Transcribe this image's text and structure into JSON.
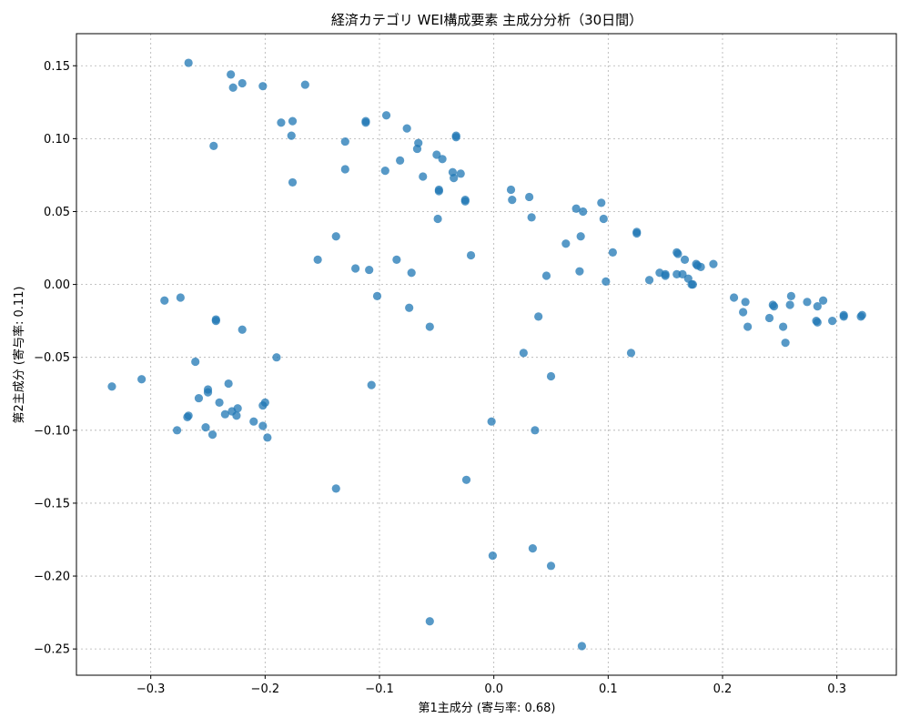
{
  "chart_data": {
    "type": "scatter",
    "title": "経済カテゴリ WEI構成要素 主成分分析（30日間）",
    "xlabel": "第1主成分 (寄与率: 0.68)",
    "ylabel": "第2主成分 (寄与率: 0.11)",
    "xlim": [
      -0.365,
      0.352
    ],
    "ylim": [
      -0.268,
      0.172
    ],
    "xticks": [
      -0.3,
      -0.2,
      -0.1,
      0.0,
      0.1,
      0.2,
      0.3
    ],
    "xtick_labels": [
      "−0.3",
      "−0.2",
      "−0.1",
      "0.0",
      "0.1",
      "0.2",
      "0.3"
    ],
    "yticks": [
      -0.25,
      -0.2,
      -0.15,
      -0.1,
      -0.05,
      0.0,
      0.05,
      0.1,
      0.15
    ],
    "ytick_labels": [
      "−0.25",
      "−0.20",
      "−0.15",
      "−0.10",
      "−0.05",
      "0.00",
      "0.05",
      "0.10",
      "0.15"
    ],
    "grid": true,
    "color": "#1f77b4",
    "points": [
      [
        -0.267,
        0.152
      ],
      [
        -0.23,
        0.144
      ],
      [
        -0.228,
        0.135
      ],
      [
        -0.22,
        0.138
      ],
      [
        -0.202,
        0.136
      ],
      [
        -0.165,
        0.137
      ],
      [
        -0.186,
        0.111
      ],
      [
        -0.176,
        0.112
      ],
      [
        -0.177,
        0.102
      ],
      [
        -0.245,
        0.095
      ],
      [
        -0.176,
        0.07
      ],
      [
        -0.13,
        0.098
      ],
      [
        -0.13,
        0.079
      ],
      [
        -0.112,
        0.111
      ],
      [
        -0.112,
        0.112
      ],
      [
        -0.094,
        0.116
      ],
      [
        -0.076,
        0.107
      ],
      [
        -0.066,
        0.097
      ],
      [
        -0.067,
        0.093
      ],
      [
        -0.082,
        0.085
      ],
      [
        -0.095,
        0.078
      ],
      [
        -0.062,
        0.074
      ],
      [
        -0.05,
        0.089
      ],
      [
        -0.045,
        0.086
      ],
      [
        -0.033,
        0.101
      ],
      [
        -0.033,
        0.102
      ],
      [
        -0.036,
        0.077
      ],
      [
        -0.035,
        0.073
      ],
      [
        -0.029,
        0.076
      ],
      [
        -0.048,
        0.064
      ],
      [
        -0.048,
        0.065
      ],
      [
        -0.025,
        0.057
      ],
      [
        -0.025,
        0.058
      ],
      [
        -0.049,
        0.045
      ],
      [
        -0.138,
        0.033
      ],
      [
        -0.154,
        0.017
      ],
      [
        -0.121,
        0.011
      ],
      [
        -0.109,
        0.01
      ],
      [
        -0.085,
        0.017
      ],
      [
        -0.072,
        0.008
      ],
      [
        -0.02,
        0.02
      ],
      [
        -0.102,
        -0.008
      ],
      [
        -0.074,
        -0.016
      ],
      [
        -0.056,
        -0.029
      ],
      [
        -0.288,
        -0.011
      ],
      [
        -0.274,
        -0.009
      ],
      [
        -0.243,
        -0.024
      ],
      [
        -0.243,
        -0.025
      ],
      [
        -0.22,
        -0.031
      ],
      [
        -0.261,
        -0.053
      ],
      [
        -0.19,
        -0.05
      ],
      [
        -0.107,
        -0.069
      ],
      [
        -0.334,
        -0.07
      ],
      [
        -0.308,
        -0.065
      ],
      [
        -0.25,
        -0.072
      ],
      [
        -0.25,
        -0.074
      ],
      [
        -0.258,
        -0.078
      ],
      [
        -0.232,
        -0.068
      ],
      [
        -0.24,
        -0.081
      ],
      [
        -0.224,
        -0.085
      ],
      [
        -0.2,
        -0.081
      ],
      [
        -0.202,
        -0.083
      ],
      [
        -0.229,
        -0.087
      ],
      [
        -0.235,
        -0.089
      ],
      [
        -0.225,
        -0.09
      ],
      [
        -0.267,
        -0.09
      ],
      [
        -0.268,
        -0.091
      ],
      [
        -0.21,
        -0.094
      ],
      [
        -0.202,
        -0.097
      ],
      [
        -0.252,
        -0.098
      ],
      [
        -0.277,
        -0.1
      ],
      [
        -0.246,
        -0.103
      ],
      [
        -0.198,
        -0.105
      ],
      [
        -0.138,
        -0.14
      ],
      [
        -0.024,
        -0.134
      ],
      [
        -0.002,
        -0.094
      ],
      [
        0.036,
        -0.1
      ],
      [
        0.05,
        -0.063
      ],
      [
        0.026,
        -0.047
      ],
      [
        0.039,
        -0.022
      ],
      [
        -0.001,
        -0.186
      ],
      [
        0.034,
        -0.181
      ],
      [
        0.05,
        -0.193
      ],
      [
        -0.056,
        -0.231
      ],
      [
        0.077,
        -0.248
      ],
      [
        0.015,
        0.065
      ],
      [
        0.016,
        0.058
      ],
      [
        0.031,
        0.06
      ],
      [
        0.033,
        0.046
      ],
      [
        0.072,
        0.052
      ],
      [
        0.078,
        0.05
      ],
      [
        0.094,
        0.056
      ],
      [
        0.096,
        0.045
      ],
      [
        0.063,
        0.028
      ],
      [
        0.076,
        0.033
      ],
      [
        0.104,
        0.022
      ],
      [
        0.046,
        0.006
      ],
      [
        0.075,
        0.009
      ],
      [
        0.098,
        0.002
      ],
      [
        0.125,
        0.035
      ],
      [
        0.125,
        0.036
      ],
      [
        0.136,
        0.003
      ],
      [
        0.145,
        0.008
      ],
      [
        0.15,
        0.007
      ],
      [
        0.15,
        0.006
      ],
      [
        0.16,
        0.022
      ],
      [
        0.161,
        0.021
      ],
      [
        0.167,
        0.017
      ],
      [
        0.178,
        0.013
      ],
      [
        0.177,
        0.014
      ],
      [
        0.181,
        0.012
      ],
      [
        0.192,
        0.014
      ],
      [
        0.16,
        0.007
      ],
      [
        0.165,
        0.007
      ],
      [
        0.17,
        0.004
      ],
      [
        0.173,
        0.0
      ],
      [
        0.174,
        0.0
      ],
      [
        0.12,
        -0.047
      ],
      [
        0.21,
        -0.009
      ],
      [
        0.22,
        -0.012
      ],
      [
        0.218,
        -0.019
      ],
      [
        0.222,
        -0.029
      ],
      [
        0.241,
        -0.023
      ],
      [
        0.244,
        -0.014
      ],
      [
        0.245,
        -0.015
      ],
      [
        0.253,
        -0.029
      ],
      [
        0.255,
        -0.04
      ],
      [
        0.26,
        -0.008
      ],
      [
        0.259,
        -0.014
      ],
      [
        0.274,
        -0.012
      ],
      [
        0.282,
        -0.025
      ],
      [
        0.283,
        -0.026
      ],
      [
        0.283,
        -0.015
      ],
      [
        0.288,
        -0.011
      ],
      [
        0.296,
        -0.025
      ],
      [
        0.306,
        -0.022
      ],
      [
        0.306,
        -0.021
      ],
      [
        0.321,
        -0.022
      ],
      [
        0.322,
        -0.021
      ]
    ]
  }
}
